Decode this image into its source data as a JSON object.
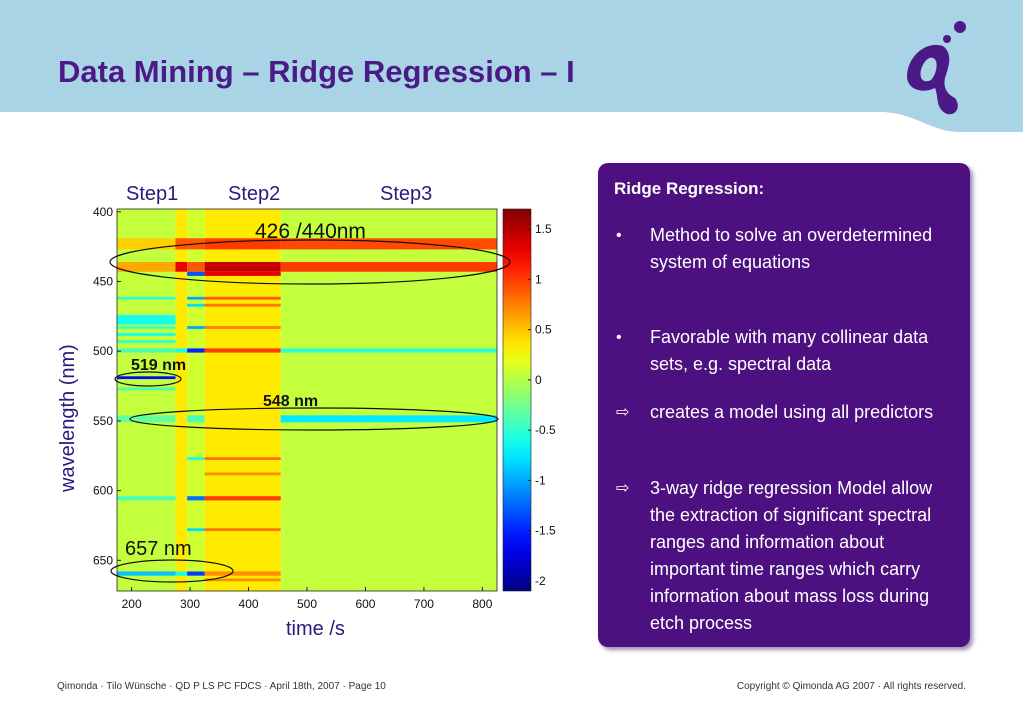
{
  "slide": {
    "title": "Data Mining – Ridge Regression – I",
    "logo": "qimonda-q-logo"
  },
  "panel": {
    "title": "Ridge Regression:",
    "bullets": [
      {
        "marker": "•",
        "text": "Method to solve an overdetermined system of equations"
      },
      {
        "marker": "•",
        "text": "Favorable with many collinear data sets, e.g. spectral data"
      },
      {
        "marker": "⇨",
        "text": "creates a model using all predictors"
      },
      {
        "marker": "⇨",
        "text": "3-way ridge regression Model allow the extraction of significant spectral ranges and information about important time ranges which carry information about mass loss during etch process"
      }
    ]
  },
  "footer": {
    "left": "Qimonda · Tilo Wünsche · QD P LS PC FDCS · April 18th, 2007 · Page 10",
    "right": "Copyright © Qimonda AG 2007 · All rights reserved."
  },
  "chart_data": {
    "type": "heatmap",
    "xlabel": "time  /s",
    "ylabel": "wavelength (nm)",
    "xlim": [
      175,
      825
    ],
    "ylim": [
      398,
      672
    ],
    "xticks": [
      200,
      300,
      400,
      500,
      600,
      700,
      800
    ],
    "yticks": [
      400,
      450,
      500,
      550,
      600,
      650
    ],
    "colorbar": {
      "min": -2.1,
      "max": 1.7,
      "ticks": [
        1.5,
        1,
        0.5,
        0,
        -0.5,
        -1,
        -1.5,
        -2
      ],
      "colormap": "jet"
    },
    "step_labels": [
      "Step1",
      "Step2",
      "Step3"
    ],
    "annotations": [
      "426 /440nm",
      "519 nm",
      "548 nm",
      "657 nm"
    ],
    "segments": [
      {
        "t": [
          175,
          275
        ],
        "base": 0.05
      },
      {
        "t": [
          275,
          295
        ],
        "base": 0.35
      },
      {
        "t": [
          295,
          325
        ],
        "base": 0.1
      },
      {
        "t": [
          325,
          455
        ],
        "base": 0.35
      },
      {
        "t": [
          455,
          825
        ],
        "base": 0.05
      }
    ],
    "bands": [
      {
        "wl": [
          419,
          427
        ],
        "values": [
          0.45,
          0.9,
          0.9,
          1.0,
          0.95
        ]
      },
      {
        "wl": [
          436,
          443
        ],
        "values": [
          0.6,
          1.3,
          0.9,
          1.45,
          1.0
        ]
      },
      {
        "wl": [
          443,
          446
        ],
        "values": [
          null,
          null,
          -1.3,
          1.3,
          null
        ]
      },
      {
        "wl": [
          461,
          463
        ],
        "values": [
          -0.5,
          null,
          -1.0,
          0.9,
          null
        ]
      },
      {
        "wl": [
          466,
          468
        ],
        "values": [
          null,
          null,
          -0.8,
          0.8,
          null
        ]
      },
      {
        "wl": [
          474,
          481
        ],
        "values": [
          -0.6,
          null,
          null,
          null,
          null
        ]
      },
      {
        "wl": [
          482,
          484
        ],
        "values": [
          -0.4,
          null,
          -1.0,
          0.75,
          null
        ]
      },
      {
        "wl": [
          487,
          489
        ],
        "values": [
          -0.6,
          null,
          null,
          null,
          null
        ]
      },
      {
        "wl": [
          492,
          494
        ],
        "values": [
          -0.5,
          null,
          null,
          null,
          null
        ]
      },
      {
        "wl": [
          498,
          501
        ],
        "values": [
          -0.4,
          -0.6,
          -1.5,
          1.0,
          -0.5
        ]
      },
      {
        "wl": [
          518,
          520
        ],
        "values": [
          -1.6,
          null,
          null,
          null,
          null
        ]
      },
      {
        "wl": [
          526,
          528
        ],
        "values": [
          -0.4,
          null,
          null,
          null,
          null
        ]
      },
      {
        "wl": [
          546,
          551
        ],
        "values": [
          -0.3,
          null,
          -0.4,
          null,
          -0.75
        ]
      },
      {
        "wl": [
          576,
          578
        ],
        "values": [
          null,
          null,
          -0.6,
          0.8,
          null
        ]
      },
      {
        "wl": [
          587,
          589
        ],
        "values": [
          null,
          null,
          null,
          0.7,
          null
        ]
      },
      {
        "wl": [
          604,
          607
        ],
        "values": [
          -0.4,
          null,
          -1.2,
          1.0,
          null
        ]
      },
      {
        "wl": [
          627,
          629
        ],
        "values": [
          null,
          null,
          -0.8,
          0.8,
          null
        ]
      },
      {
        "wl": [
          658,
          661
        ],
        "values": [
          -0.9,
          -0.6,
          -1.4,
          0.7,
          null
        ]
      },
      {
        "wl": [
          663,
          665
        ],
        "values": [
          null,
          null,
          null,
          0.7,
          null
        ]
      }
    ]
  }
}
